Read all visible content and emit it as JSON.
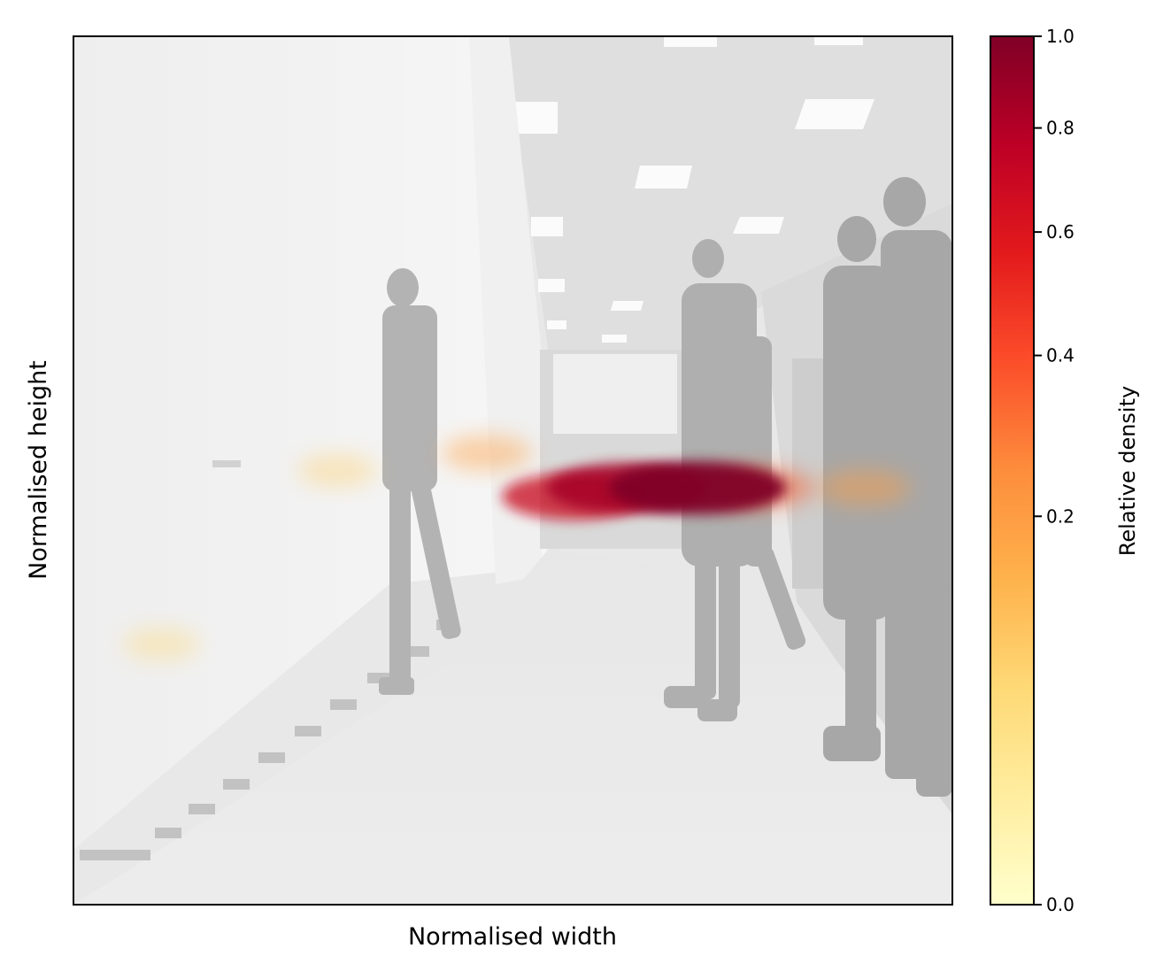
{
  "chart_data": {
    "type": "heatmap",
    "title": "",
    "xlabel": "Normalised width",
    "ylabel": "Normalised height",
    "x_ticks": [],
    "y_ticks": [],
    "background": "grayscale photo of a hallway with people walking",
    "colorbar": {
      "label": "Relative density",
      "range": [
        0.0,
        1.0
      ],
      "scale": "power",
      "ticks": [
        0.0,
        0.2,
        0.4,
        0.6,
        0.8,
        1.0
      ],
      "tick_labels": [
        "0.0",
        "0.2",
        "0.4",
        "0.6",
        "0.8",
        "1.0"
      ],
      "colormap": "YlOrRd",
      "colors": [
        "#ffffcc",
        "#ffeda0",
        "#fed976",
        "#feb24c",
        "#fd8d3c",
        "#fc4e2a",
        "#e31a1c",
        "#bd0026",
        "#800026"
      ]
    },
    "hotspots": [
      {
        "x": 0.71,
        "y": 0.48,
        "density": 1.0
      },
      {
        "x": 0.63,
        "y": 0.48,
        "density": 0.85
      },
      {
        "x": 0.57,
        "y": 0.47,
        "density": 0.7
      },
      {
        "x": 0.78,
        "y": 0.48,
        "density": 0.35
      },
      {
        "x": 0.47,
        "y": 0.52,
        "density": 0.18
      },
      {
        "x": 0.9,
        "y": 0.48,
        "density": 0.2
      },
      {
        "x": 0.3,
        "y": 0.5,
        "density": 0.08
      },
      {
        "x": 0.1,
        "y": 0.3,
        "density": 0.06
      }
    ]
  }
}
